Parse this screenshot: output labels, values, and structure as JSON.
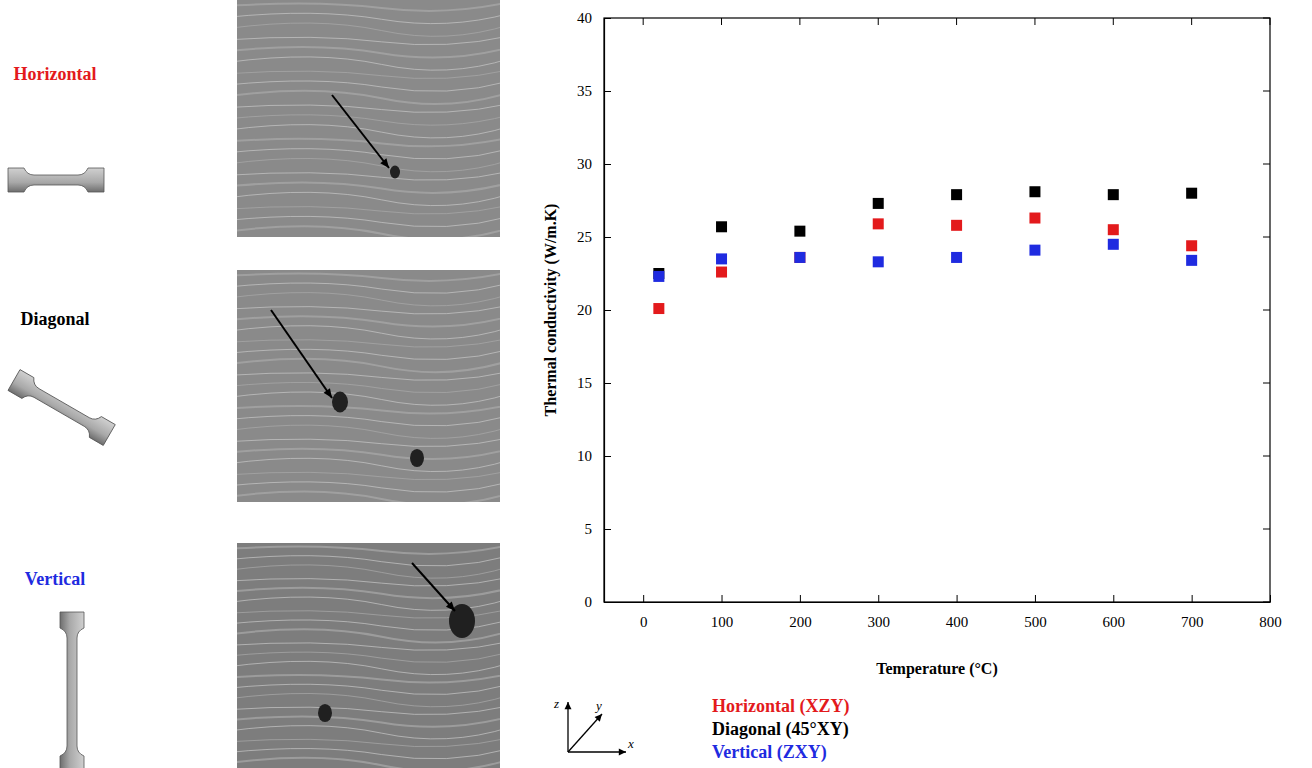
{
  "chart_data": {
    "type": "scatter",
    "x_label": "Temperature (°C)",
    "y_label": "Thermal conductivity (W/m.K)",
    "x": [
      20,
      100,
      200,
      300,
      400,
      500,
      600,
      700
    ],
    "series": [
      {
        "name": "Horizontal (XZY)",
        "color": "#e31a1c",
        "marker": "square",
        "values": [
          20.1,
          22.6,
          23.6,
          25.9,
          25.8,
          26.3,
          25.5,
          24.4
        ]
      },
      {
        "name": "Diagonal (45°XY)",
        "color": "#000000",
        "marker": "square",
        "values": [
          22.5,
          25.7,
          25.4,
          27.3,
          27.9,
          28.1,
          27.9,
          28.0
        ]
      },
      {
        "name": "Vertical (ZXY)",
        "color": "#1f2be0",
        "marker": "square",
        "values": [
          22.3,
          23.5,
          23.6,
          23.3,
          23.6,
          24.1,
          24.5,
          23.4
        ]
      }
    ],
    "xlim": [
      -50,
      800
    ],
    "xticks": [
      0,
      100,
      200,
      300,
      400,
      500,
      600,
      700,
      800
    ],
    "ylim": [
      0,
      40
    ],
    "yticks": [
      0,
      5,
      10,
      15,
      20,
      25,
      30,
      35,
      40
    ],
    "grid": false,
    "legend": "below",
    "annotations": [
      {
        "text": "Horizontal",
        "color": "#e31a1c"
      },
      {
        "text": "Diagonal",
        "color": "#000000"
      },
      {
        "text": "Vertical",
        "color": "#1f2be0"
      }
    ],
    "axis_icon_labels": [
      "z",
      "y",
      "x"
    ]
  }
}
